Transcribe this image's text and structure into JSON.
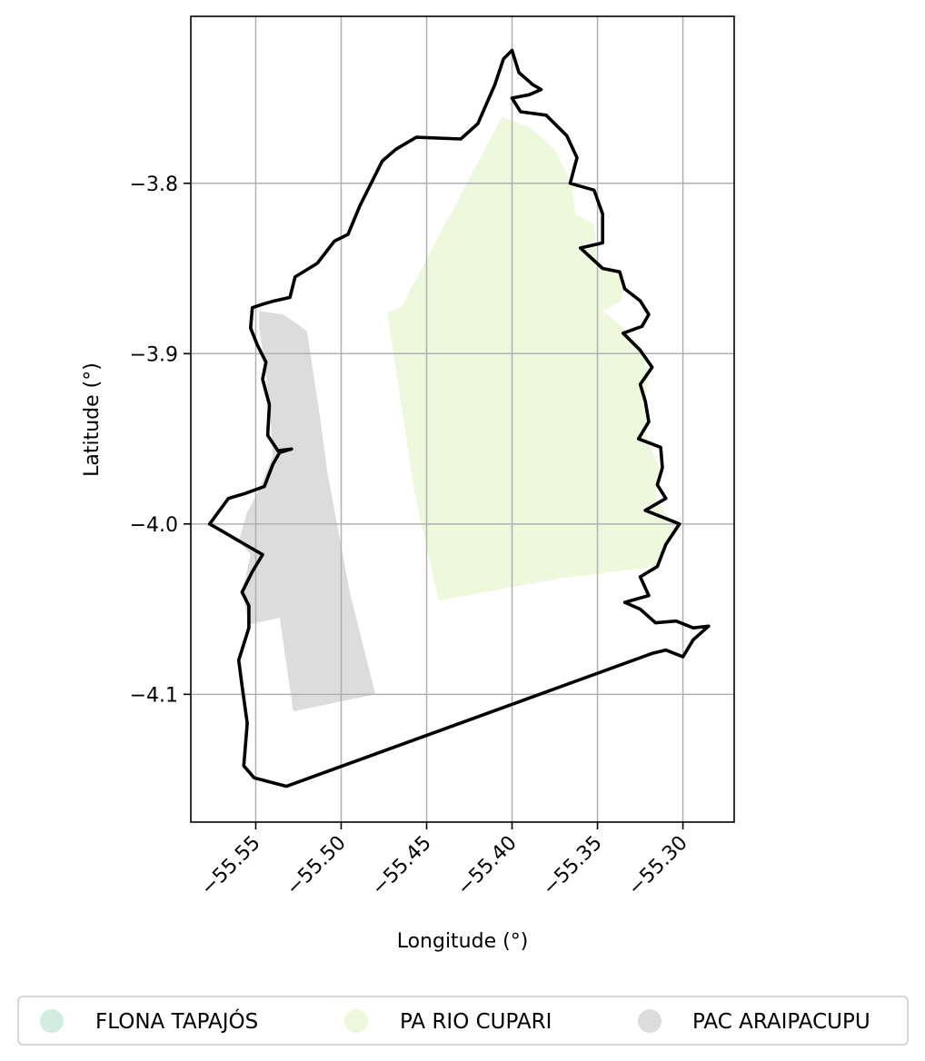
{
  "chart_data": {
    "type": "map",
    "xlabel": "Longitude (°)",
    "ylabel": "Latitude (°)",
    "xlim": [
      -55.588,
      -55.27
    ],
    "ylim": [
      -4.175,
      -3.702
    ],
    "xticks": [
      {
        "value": -55.55,
        "label": "−55.55"
      },
      {
        "value": -55.5,
        "label": "−55.50"
      },
      {
        "value": -55.45,
        "label": "−55.45"
      },
      {
        "value": -55.4,
        "label": "−55.40"
      },
      {
        "value": -55.35,
        "label": "−55.35"
      },
      {
        "value": -55.3,
        "label": "−55.30"
      }
    ],
    "yticks": [
      {
        "value": -3.8,
        "label": "−3.8"
      },
      {
        "value": -3.9,
        "label": "−3.9"
      },
      {
        "value": -4.0,
        "label": "−4.0"
      },
      {
        "value": -4.1,
        "label": "−4.1"
      }
    ],
    "grid": true,
    "legend_placement": "bottom",
    "boundary": {
      "color": "#000000",
      "coords": [
        [
          -55.539,
          -3.869
        ],
        [
          -55.53,
          -3.867
        ],
        [
          -55.527,
          -3.855
        ],
        [
          -55.514,
          -3.847
        ],
        [
          -55.504,
          -3.834
        ],
        [
          -55.496,
          -3.83
        ],
        [
          -55.489,
          -3.813
        ],
        [
          -55.476,
          -3.787
        ],
        [
          -55.468,
          -3.78
        ],
        [
          -55.456,
          -3.773
        ],
        [
          -55.43,
          -3.774
        ],
        [
          -55.42,
          -3.765
        ],
        [
          -55.41,
          -3.742
        ],
        [
          -55.405,
          -3.727
        ],
        [
          -55.4,
          -3.722
        ],
        [
          -55.396,
          -3.735
        ],
        [
          -55.388,
          -3.742
        ],
        [
          -55.383,
          -3.745
        ],
        [
          -55.39,
          -3.748
        ],
        [
          -55.4,
          -3.75
        ],
        [
          -55.395,
          -3.758
        ],
        [
          -55.38,
          -3.76
        ],
        [
          -55.368,
          -3.772
        ],
        [
          -55.362,
          -3.785
        ],
        [
          -55.366,
          -3.8
        ],
        [
          -55.352,
          -3.804
        ],
        [
          -55.347,
          -3.818
        ],
        [
          -55.347,
          -3.835
        ],
        [
          -55.36,
          -3.838
        ],
        [
          -55.347,
          -3.85
        ],
        [
          -55.337,
          -3.852
        ],
        [
          -55.334,
          -3.862
        ],
        [
          -55.325,
          -3.869
        ],
        [
          -55.32,
          -3.877
        ],
        [
          -55.324,
          -3.884
        ],
        [
          -55.335,
          -3.888
        ],
        [
          -55.325,
          -3.898
        ],
        [
          -55.318,
          -3.908
        ],
        [
          -55.325,
          -3.918
        ],
        [
          -55.322,
          -3.928
        ],
        [
          -55.32,
          -3.94
        ],
        [
          -55.326,
          -3.95
        ],
        [
          -55.313,
          -3.955
        ],
        [
          -55.312,
          -3.967
        ],
        [
          -55.315,
          -3.977
        ],
        [
          -55.31,
          -3.985
        ],
        [
          -55.322,
          -3.992
        ],
        [
          -55.302,
          -4.0
        ],
        [
          -55.31,
          -4.012
        ],
        [
          -55.315,
          -4.025
        ],
        [
          -55.325,
          -4.031
        ],
        [
          -55.32,
          -4.042
        ],
        [
          -55.334,
          -4.046
        ],
        [
          -55.325,
          -4.05
        ],
        [
          -55.316,
          -4.058
        ],
        [
          -55.304,
          -4.057
        ],
        [
          -55.294,
          -4.061
        ],
        [
          -55.285,
          -4.06
        ],
        [
          -55.294,
          -4.068
        ],
        [
          -55.3,
          -4.078
        ],
        [
          -55.31,
          -4.074
        ],
        [
          -55.318,
          -4.076
        ],
        [
          -55.532,
          -4.154
        ],
        [
          -55.551,
          -4.149
        ],
        [
          -55.557,
          -4.142
        ],
        [
          -55.555,
          -4.117
        ],
        [
          -55.558,
          -4.095
        ],
        [
          -55.56,
          -4.08
        ],
        [
          -55.554,
          -4.061
        ],
        [
          -55.554,
          -4.048
        ],
        [
          -55.558,
          -4.04
        ],
        [
          -55.552,
          -4.028
        ],
        [
          -55.546,
          -4.018
        ],
        [
          -55.558,
          -4.011
        ],
        [
          -55.57,
          -4.004
        ],
        [
          -55.577,
          -4.0
        ],
        [
          -55.566,
          -3.985
        ],
        [
          -55.556,
          -3.982
        ],
        [
          -55.545,
          -3.978
        ],
        [
          -55.54,
          -3.965
        ],
        [
          -55.536,
          -3.958
        ],
        [
          -55.529,
          -3.956
        ],
        [
          -55.537,
          -3.957
        ],
        [
          -55.543,
          -3.948
        ],
        [
          -55.542,
          -3.93
        ],
        [
          -55.546,
          -3.915
        ],
        [
          -55.544,
          -3.905
        ],
        [
          -55.549,
          -3.895
        ],
        [
          -55.553,
          -3.885
        ],
        [
          -55.552,
          -3.873
        ],
        [
          -55.546,
          -3.871
        ],
        [
          -55.539,
          -3.869
        ]
      ]
    },
    "legend": [
      {
        "name": "FLONA TAPAJÓS",
        "color": "#d3ece1"
      },
      {
        "name": "PA RIO CUPARI",
        "color": "#eef8dc"
      },
      {
        "name": "PAC ARAIPACUPU",
        "color": "#dcdcdc"
      }
    ],
    "regions": [
      {
        "name": "PA RIO CUPARI",
        "color": "#eef8dc",
        "coords": [
          [
            -55.473,
            -3.876
          ],
          [
            -55.465,
            -3.873
          ],
          [
            -55.406,
            -3.761
          ],
          [
            -55.39,
            -3.767
          ],
          [
            -55.375,
            -3.78
          ],
          [
            -55.365,
            -3.8
          ],
          [
            -55.363,
            -3.818
          ],
          [
            -55.352,
            -3.824
          ],
          [
            -55.35,
            -3.85
          ],
          [
            -55.338,
            -3.853
          ],
          [
            -55.334,
            -3.862
          ],
          [
            -55.337,
            -3.87
          ],
          [
            -55.347,
            -3.875
          ],
          [
            -55.337,
            -3.883
          ],
          [
            -55.325,
            -3.895
          ],
          [
            -55.32,
            -3.912
          ],
          [
            -55.322,
            -3.93
          ],
          [
            -55.321,
            -3.95
          ],
          [
            -55.314,
            -3.967
          ],
          [
            -55.316,
            -3.985
          ],
          [
            -55.304,
            -4.002
          ],
          [
            -55.316,
            -4.025
          ],
          [
            -55.372,
            -4.032
          ],
          [
            -55.443,
            -4.045
          ],
          [
            -55.457,
            -3.982
          ],
          [
            -55.473,
            -3.876
          ]
        ]
      },
      {
        "name": "PAC ARAIPACUPU",
        "color": "#dcdcdc",
        "coords": [
          [
            -55.548,
            -3.875
          ],
          [
            -55.534,
            -3.877
          ],
          [
            -55.525,
            -3.883
          ],
          [
            -55.52,
            -3.887
          ],
          [
            -55.512,
            -3.94
          ],
          [
            -55.508,
            -3.97
          ],
          [
            -55.495,
            -4.04
          ],
          [
            -55.48,
            -4.1
          ],
          [
            -55.528,
            -4.11
          ],
          [
            -55.536,
            -4.055
          ],
          [
            -55.554,
            -4.059
          ],
          [
            -55.558,
            -4.04
          ],
          [
            -55.553,
            -4.018
          ],
          [
            -55.56,
            -4.01
          ],
          [
            -55.555,
            -3.993
          ],
          [
            -55.548,
            -3.98
          ],
          [
            -55.54,
            -3.96
          ],
          [
            -55.542,
            -3.93
          ],
          [
            -55.545,
            -3.905
          ],
          [
            -55.548,
            -3.885
          ],
          [
            -55.548,
            -3.875
          ]
        ]
      }
    ]
  }
}
